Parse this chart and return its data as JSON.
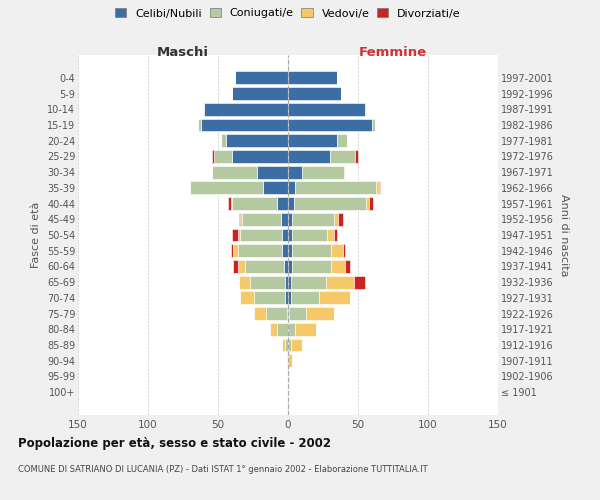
{
  "age_groups": [
    "100+",
    "95-99",
    "90-94",
    "85-89",
    "80-84",
    "75-79",
    "70-74",
    "65-69",
    "60-64",
    "55-59",
    "50-54",
    "45-49",
    "40-44",
    "35-39",
    "30-34",
    "25-29",
    "20-24",
    "15-19",
    "10-14",
    "5-9",
    "0-4"
  ],
  "birth_years": [
    "≤ 1901",
    "1902-1906",
    "1907-1911",
    "1912-1916",
    "1917-1921",
    "1922-1926",
    "1927-1931",
    "1932-1936",
    "1937-1941",
    "1942-1946",
    "1947-1951",
    "1952-1956",
    "1957-1961",
    "1962-1966",
    "1967-1971",
    "1972-1976",
    "1977-1981",
    "1982-1986",
    "1987-1991",
    "1992-1996",
    "1997-2001"
  ],
  "male_celibi": [
    0,
    0,
    0,
    0,
    0,
    1,
    2,
    2,
    3,
    4,
    4,
    5,
    8,
    18,
    22,
    40,
    44,
    62,
    60,
    40,
    38
  ],
  "male_coniugati": [
    0,
    0,
    1,
    2,
    8,
    15,
    22,
    25,
    28,
    32,
    30,
    28,
    32,
    52,
    32,
    13,
    4,
    2,
    1,
    0,
    0
  ],
  "male_vedovi": [
    0,
    0,
    0,
    2,
    5,
    8,
    10,
    8,
    5,
    3,
    2,
    1,
    1,
    0,
    0,
    0,
    0,
    0,
    0,
    0,
    0
  ],
  "male_divorziati": [
    0,
    0,
    0,
    0,
    0,
    0,
    0,
    0,
    3,
    2,
    4,
    1,
    2,
    0,
    0,
    1,
    0,
    0,
    0,
    0,
    0
  ],
  "female_nubili": [
    0,
    0,
    0,
    0,
    0,
    1,
    2,
    2,
    3,
    3,
    3,
    3,
    4,
    5,
    10,
    30,
    35,
    60,
    55,
    38,
    35
  ],
  "female_coniugate": [
    0,
    0,
    0,
    2,
    5,
    12,
    20,
    25,
    28,
    28,
    25,
    30,
    52,
    58,
    30,
    18,
    7,
    2,
    1,
    0,
    0
  ],
  "female_vedove": [
    0,
    1,
    3,
    8,
    15,
    20,
    22,
    20,
    10,
    8,
    5,
    3,
    2,
    2,
    1,
    0,
    0,
    0,
    0,
    0,
    0
  ],
  "female_divorziate": [
    0,
    0,
    0,
    0,
    0,
    0,
    0,
    8,
    3,
    2,
    2,
    3,
    3,
    1,
    0,
    2,
    0,
    0,
    0,
    0,
    0
  ],
  "color_celibi_nubili": "#3a6ea5",
  "color_coniugati_e": "#b5c9a0",
  "color_vedovi_e": "#f5c96a",
  "color_divorziati_e": "#cc2222",
  "xlim": 150,
  "title": "Popolazione per età, sesso e stato civile - 2002",
  "subtitle": "COMUNE DI SATRIANO DI LUCANIA (PZ) - Dati ISTAT 1° gennaio 2002 - Elaborazione TUTTITALIA.IT",
  "label_maschi": "Maschi",
  "label_femmine": "Femmine",
  "label_fasce": "Fasce di età",
  "label_anni": "Anni di nascita",
  "legend_labels": [
    "Celibi/Nubili",
    "Coniugati/e",
    "Vedovi/e",
    "Divorziati/e"
  ],
  "bg_color": "#f0f0f0",
  "plot_bg_color": "#ffffff",
  "grid_color": "#cccccc"
}
